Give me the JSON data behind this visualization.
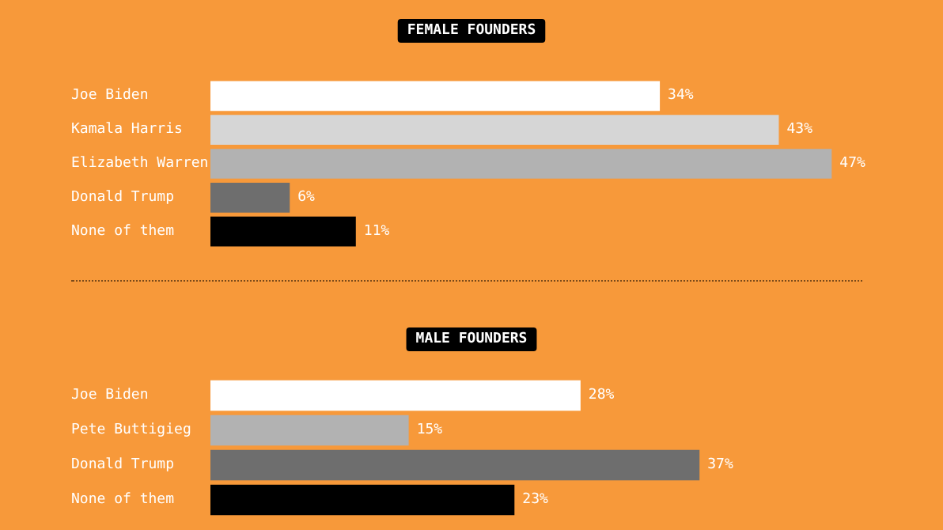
{
  "chart_data": [
    {
      "type": "bar",
      "orientation": "horizontal",
      "title": "FEMALE FOUNDERS",
      "categories": [
        "Joe Biden",
        "Kamala Harris",
        "Elizabeth Warren",
        "Donald Trump",
        "None of them"
      ],
      "values": [
        34,
        43,
        47,
        6,
        11
      ],
      "colors": [
        "#ffffff",
        "#d6d6d6",
        "#b2b2b2",
        "#6e6e6e",
        "#000000"
      ],
      "value_labels": [
        "34%",
        "43%",
        "47%",
        "6%",
        "11%"
      ]
    },
    {
      "type": "bar",
      "orientation": "horizontal",
      "title": "MALE FOUNDERS",
      "categories": [
        "Joe Biden",
        "Pete Buttigieg",
        "Donald Trump",
        "None of them"
      ],
      "values": [
        28,
        15,
        37,
        23
      ],
      "colors": [
        "#ffffff",
        "#b2b2b2",
        "#6e6e6e",
        "#000000"
      ],
      "value_labels": [
        "28%",
        "15%",
        "37%",
        "23%"
      ]
    }
  ]
}
